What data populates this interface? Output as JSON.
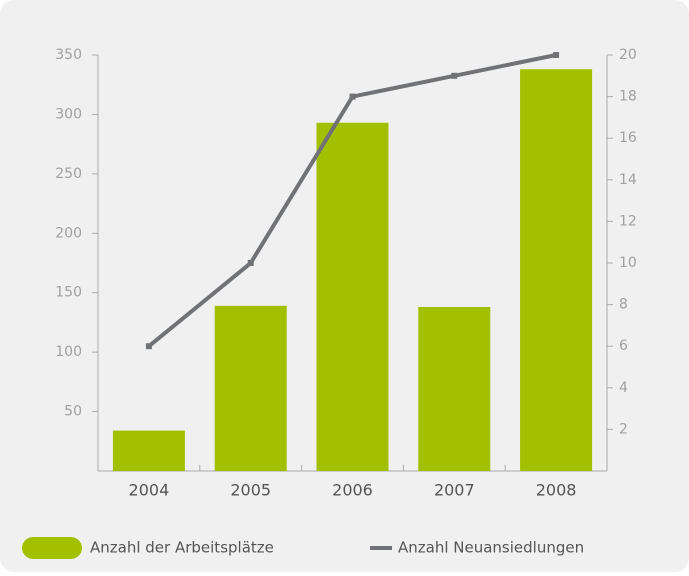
{
  "chart_data": {
    "type": "bar-line",
    "categories": [
      "2004",
      "2005",
      "2006",
      "2007",
      "2008"
    ],
    "series": [
      {
        "name": "Anzahl der Arbeitsplätze",
        "type": "bar",
        "color": "#a3c000",
        "values": [
          34,
          139,
          293,
          138,
          338
        ]
      },
      {
        "name": "Anzahl Neuansiedlungen",
        "type": "line",
        "axis": "y2",
        "color": "#707275",
        "values": [
          6,
          10,
          18,
          19,
          20
        ]
      }
    ],
    "ylim": [
      0,
      350
    ],
    "yticks": [
      50,
      100,
      150,
      200,
      250,
      300,
      350
    ],
    "y2lim": [
      0,
      20
    ],
    "y2ticks": [
      2,
      4,
      6,
      8,
      10,
      12,
      14,
      16,
      18,
      20
    ]
  }
}
